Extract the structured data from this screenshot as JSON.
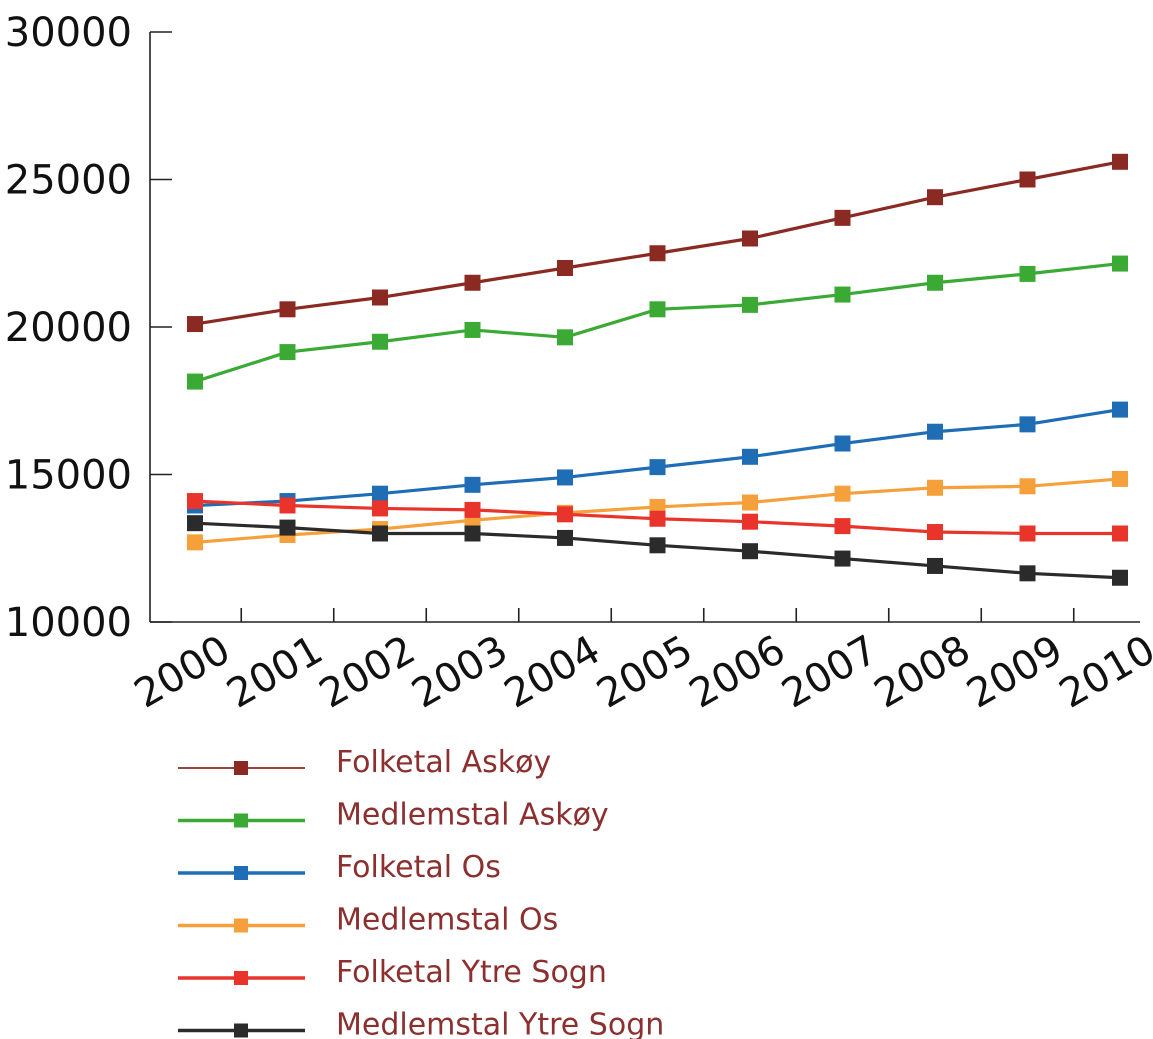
{
  "chart_data": {
    "type": "line",
    "title": "",
    "xlabel": "",
    "ylabel": "",
    "x": [
      "2000",
      "2001",
      "2002",
      "2003",
      "2004",
      "2005",
      "2006",
      "2007",
      "2008",
      "2009",
      "2010"
    ],
    "ylim": [
      10000,
      30000
    ],
    "yticks": [
      "10000",
      "15000",
      "20000",
      "25000",
      "30000"
    ],
    "grid": false,
    "legend_position": "bottom-left",
    "series": [
      {
        "name": "Folketal Askøy",
        "color": "#8b2a22",
        "values": [
          20100,
          20600,
          21000,
          21500,
          22000,
          22500,
          23000,
          23700,
          24400,
          25000,
          25600
        ]
      },
      {
        "name": "Medlemstal Askøy",
        "color": "#3aaa35",
        "values": [
          18150,
          19150,
          19500,
          19900,
          19650,
          20600,
          20750,
          21100,
          21500,
          21800,
          22150
        ]
      },
      {
        "name": "Folketal Os",
        "color": "#1f6db5",
        "values": [
          13950,
          14100,
          14350,
          14650,
          14900,
          15250,
          15600,
          16050,
          16450,
          16700,
          17200
        ]
      },
      {
        "name": "Medlemstal Os",
        "color": "#f5a03a",
        "values": [
          12700,
          12950,
          13150,
          13450,
          13700,
          13900,
          14050,
          14350,
          14550,
          14600,
          14850
        ]
      },
      {
        "name": "Folketal Ytre Sogn",
        "color": "#e8342a",
        "values": [
          14100,
          13950,
          13850,
          13800,
          13650,
          13500,
          13400,
          13250,
          13050,
          13000,
          13000
        ]
      },
      {
        "name": "Medlemstal Ytre Sogn",
        "color": "#2b2b2b",
        "values": [
          13350,
          13200,
          13000,
          13000,
          12850,
          12600,
          12400,
          12150,
          11900,
          11650,
          11500
        ]
      }
    ]
  }
}
